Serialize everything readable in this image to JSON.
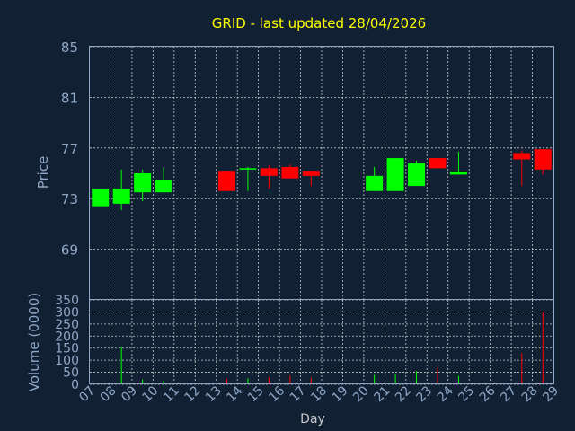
{
  "chart_data": {
    "type": "candlestick",
    "title": "GRID - last updated 28/04/2026",
    "price_panel": {
      "ylabel": "Price",
      "ylim": [
        65,
        85
      ],
      "yticks": [
        85,
        81,
        77,
        73,
        69
      ],
      "grid": true
    },
    "volume_panel": {
      "ylabel": "Volume (0000)",
      "ylim": [
        0,
        350
      ],
      "yticks": [
        350,
        300,
        250,
        200,
        150,
        100,
        50,
        0
      ],
      "grid": true
    },
    "xlabel": "Day",
    "x_tick_labels": [
      "07",
      "08",
      "09",
      "10",
      "11",
      "12",
      "13",
      "14",
      "15",
      "16",
      "17",
      "18",
      "19",
      "20",
      "21",
      "22",
      "23",
      "24",
      "25",
      "26",
      "27",
      "28",
      "29"
    ],
    "candles": [
      {
        "day": "07",
        "open": 72.4,
        "high": 73.8,
        "low": 72.4,
        "close": 73.8,
        "volume": 0
      },
      {
        "day": "08",
        "open": 72.6,
        "high": 75.3,
        "low": 72.1,
        "close": 73.8,
        "volume": 155
      },
      {
        "day": "09",
        "open": 73.5,
        "high": 75.3,
        "low": 72.8,
        "close": 75.0,
        "volume": 20
      },
      {
        "day": "10",
        "open": 73.5,
        "high": 75.5,
        "low": 73.5,
        "close": 74.5,
        "volume": 15
      },
      {
        "day": "13",
        "open": 75.2,
        "high": 75.2,
        "low": 73.6,
        "close": 73.6,
        "volume": 22
      },
      {
        "day": "14",
        "open": 75.3,
        "high": 75.5,
        "low": 73.6,
        "close": 75.4,
        "volume": 25
      },
      {
        "day": "15",
        "open": 75.4,
        "high": 75.6,
        "low": 73.8,
        "close": 74.8,
        "volume": 30
      },
      {
        "day": "16",
        "open": 75.5,
        "high": 75.7,
        "low": 74.6,
        "close": 74.6,
        "volume": 35
      },
      {
        "day": "17",
        "open": 75.2,
        "high": 75.2,
        "low": 74.0,
        "close": 74.8,
        "volume": 28
      },
      {
        "day": "20",
        "open": 73.6,
        "high": 75.5,
        "low": 73.6,
        "close": 74.8,
        "volume": 40
      },
      {
        "day": "21",
        "open": 73.6,
        "high": 76.2,
        "low": 73.6,
        "close": 76.2,
        "volume": 45
      },
      {
        "day": "22",
        "open": 74.0,
        "high": 76.0,
        "low": 74.0,
        "close": 75.8,
        "volume": 55
      },
      {
        "day": "23",
        "open": 76.2,
        "high": 76.2,
        "low": 75.4,
        "close": 75.4,
        "volume": 70
      },
      {
        "day": "24",
        "open": 74.9,
        "high": 76.7,
        "low": 74.9,
        "close": 75.1,
        "volume": 35
      },
      {
        "day": "27",
        "open": 76.6,
        "high": 76.8,
        "low": 74.0,
        "close": 76.1,
        "volume": 130
      },
      {
        "day": "28",
        "open": 76.9,
        "high": 76.9,
        "low": 74.9,
        "close": 75.3,
        "volume": 300
      }
    ],
    "colors": {
      "background": "#112033",
      "up": "#00ff00",
      "down": "#ff0000",
      "title": "#ffff00",
      "axis_text": "#8fa8c8",
      "frame": "#8fa8c8",
      "grid": "#c8c8c8"
    }
  }
}
